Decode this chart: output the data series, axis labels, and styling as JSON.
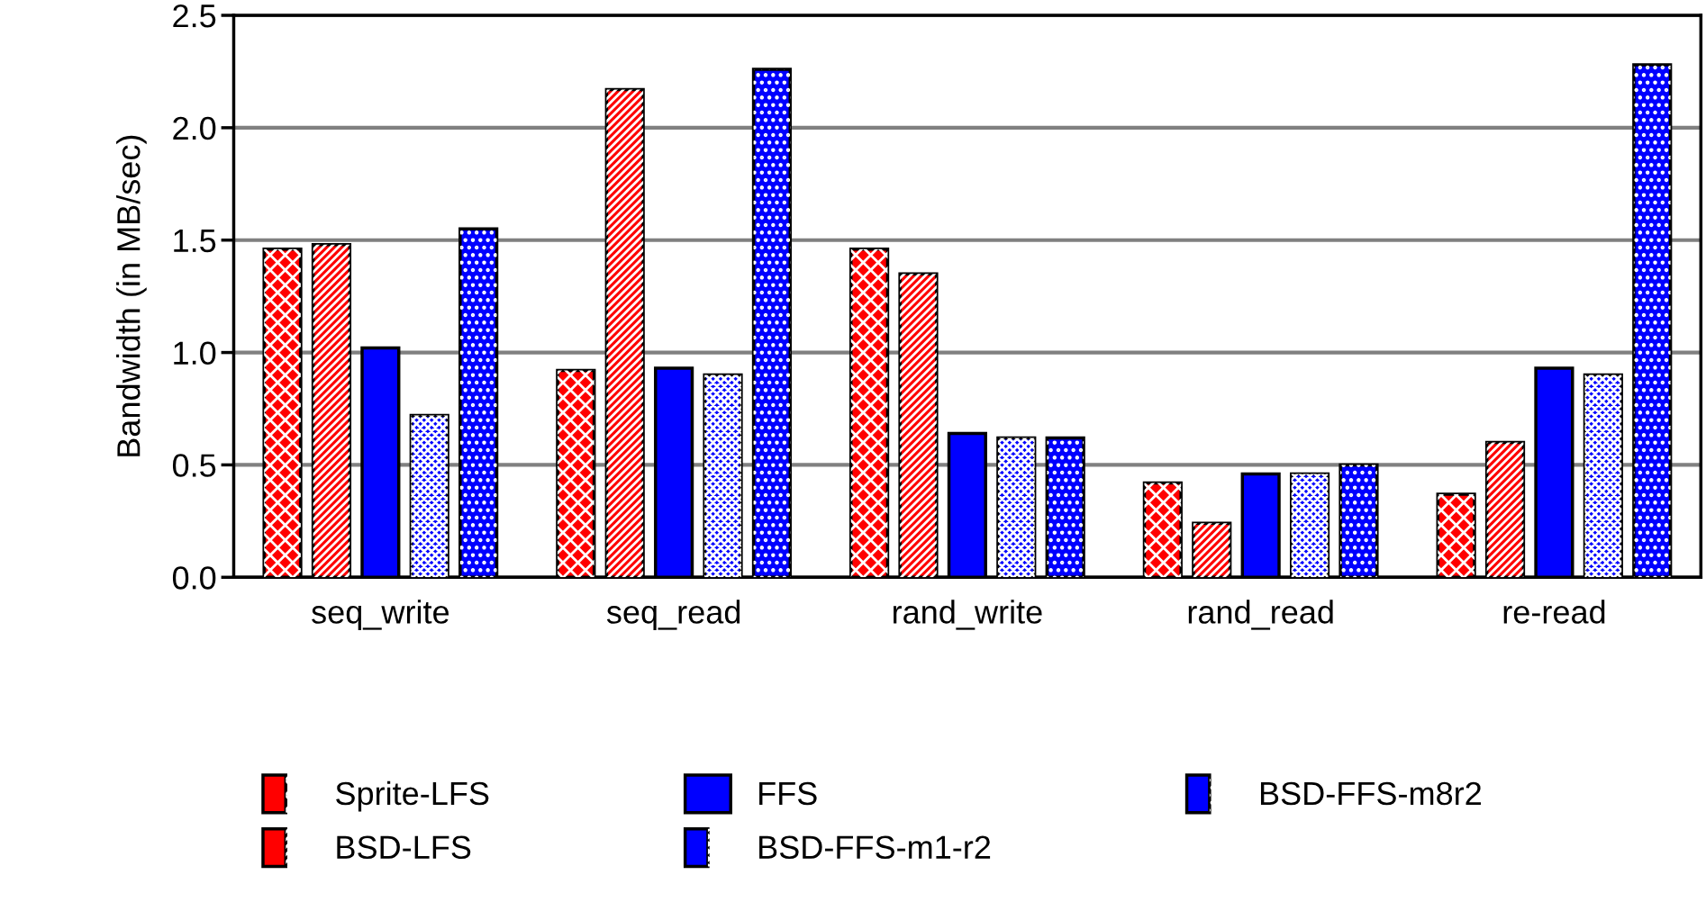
{
  "chart_data": {
    "type": "bar",
    "ylabel": "Bandwidth (in MB/sec)",
    "categories": [
      "seq_write",
      "seq_read",
      "rand_write",
      "rand_read",
      "re-read"
    ],
    "series": [
      {
        "name": "Sprite-LFS",
        "color": "#ff0000",
        "values": [
          1.46,
          0.92,
          1.46,
          0.42,
          0.37
        ]
      },
      {
        "name": "BSD-LFS",
        "color": "#ff0000",
        "values": [
          1.48,
          2.17,
          1.35,
          0.24,
          0.6
        ]
      },
      {
        "name": "FFS",
        "color": "#0000ff",
        "values": [
          1.02,
          0.93,
          0.64,
          0.46,
          0.93
        ]
      },
      {
        "name": "BSD-FFS-m1-r2",
        "color": "#0000ff",
        "values": [
          0.72,
          0.9,
          0.62,
          0.46,
          0.9
        ]
      },
      {
        "name": "BSD-FFS-m8r2",
        "color": "#0000ff",
        "values": [
          1.55,
          2.26,
          0.62,
          0.5,
          2.28
        ]
      }
    ],
    "ylim": [
      0,
      2.5
    ],
    "yticks": [
      {
        "value": 0,
        "label": "0.0"
      },
      {
        "value": 0.5,
        "label": "0.5"
      },
      {
        "value": 1,
        "label": "1.0"
      },
      {
        "value": 1.5,
        "label": "1.5"
      },
      {
        "value": 2,
        "label": "2.0"
      },
      {
        "value": 2.5,
        "label": "2.5"
      }
    ],
    "grid": "y",
    "legend": "bottom"
  }
}
